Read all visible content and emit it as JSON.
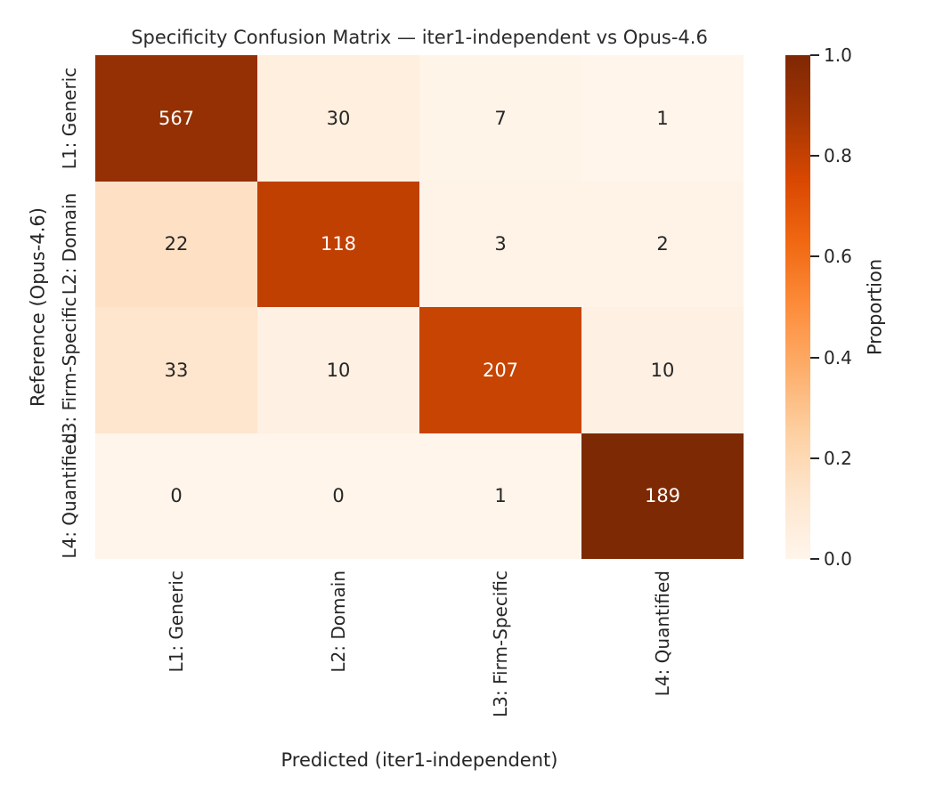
{
  "chart_data": {
    "type": "heatmap",
    "title": "Specificity Confusion Matrix — iter1-independent vs Opus-4.6",
    "xlabel": "Predicted (iter1-independent)",
    "ylabel": "Reference (Opus-4.6)",
    "x_categories": [
      "L1: Generic",
      "L2: Domain",
      "L3: Firm-Specific",
      "L4: Quantified"
    ],
    "y_categories": [
      "L1: Generic",
      "L2: Domain",
      "L3: Firm-Specific",
      "L4: Quantified"
    ],
    "values": [
      [
        567,
        30,
        7,
        1
      ],
      [
        22,
        118,
        3,
        2
      ],
      [
        33,
        10,
        207,
        10
      ],
      [
        0,
        0,
        1,
        189
      ]
    ],
    "row_proportions": [
      [
        0.937,
        0.05,
        0.012,
        0.002
      ],
      [
        0.152,
        0.814,
        0.021,
        0.014
      ],
      [
        0.127,
        0.038,
        0.796,
        0.038
      ],
      [
        0.0,
        0.0,
        0.005,
        0.995
      ]
    ],
    "cell_colors": [
      [
        "#943003",
        "#feefdf",
        "#fff4e8",
        "#fff5eb"
      ],
      [
        "#fee1c4",
        "#c04002",
        "#fff2e6",
        "#fff3e8"
      ],
      [
        "#fee5cd",
        "#fef0e2",
        "#c74402",
        "#fef0e2"
      ],
      [
        "#fff5eb",
        "#fff5eb",
        "#fff5ea",
        "#7d2904"
      ]
    ],
    "cell_text_colors": [
      [
        "#ffffff",
        "#262626",
        "#262626",
        "#262626"
      ],
      [
        "#262626",
        "#ffffff",
        "#262626",
        "#262626"
      ],
      [
        "#262626",
        "#262626",
        "#ffffff",
        "#262626"
      ],
      [
        "#262626",
        "#262626",
        "#262626",
        "#ffffff"
      ]
    ],
    "grid": false,
    "legend_position": "right",
    "colormap": "Oranges",
    "colorbar": {
      "label": "Proportion",
      "range": [
        0.0,
        1.0
      ],
      "ticks": [
        1.0,
        0.8,
        0.6,
        0.4,
        0.2,
        0.0
      ],
      "tick_labels": [
        "1.0",
        "0.8",
        "0.6",
        "0.4",
        "0.2",
        "0.0"
      ],
      "gradient_stops": [
        "#fff5eb",
        "#fee6ce",
        "#fdd0a2",
        "#fdae6b",
        "#fd8d3c",
        "#f16913",
        "#d94801",
        "#a63603",
        "#7f2704"
      ]
    },
    "text_color": "#262626"
  }
}
